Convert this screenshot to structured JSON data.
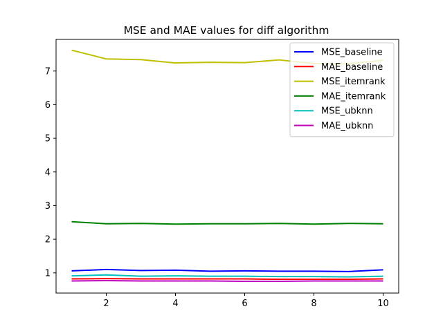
{
  "chart_data": {
    "type": "line",
    "title": "MSE and MAE values for diff algorithm",
    "xlabel": "",
    "ylabel": "",
    "x": [
      1,
      2,
      3,
      4,
      5,
      6,
      7,
      8,
      9,
      10
    ],
    "xlim": [
      0.55,
      10.45
    ],
    "ylim": [
      0.4,
      7.94
    ],
    "xticks": [
      2,
      4,
      6,
      8,
      10
    ],
    "yticks": [
      1,
      2,
      3,
      4,
      5,
      6,
      7
    ],
    "grid": false,
    "legend_position": "top-right",
    "series": [
      {
        "name": "MSE_baseline",
        "color": "#0000ff",
        "values": [
          1.06,
          1.1,
          1.07,
          1.08,
          1.05,
          1.06,
          1.05,
          1.05,
          1.04,
          1.09
        ]
      },
      {
        "name": "MAE_baseline",
        "color": "#ff0000",
        "values": [
          0.82,
          0.83,
          0.82,
          0.82,
          0.82,
          0.82,
          0.81,
          0.81,
          0.81,
          0.82
        ]
      },
      {
        "name": "MSE_itemrank",
        "color": "#bfbf00",
        "values": [
          7.62,
          7.36,
          7.34,
          7.24,
          7.26,
          7.25,
          7.33,
          7.22,
          7.21,
          7.32
        ]
      },
      {
        "name": "MAE_itemrank",
        "color": "#008000",
        "values": [
          2.52,
          2.46,
          2.47,
          2.45,
          2.46,
          2.46,
          2.47,
          2.45,
          2.47,
          2.46
        ]
      },
      {
        "name": "MSE_ubknn",
        "color": "#00bfbf",
        "values": [
          0.91,
          0.94,
          0.9,
          0.91,
          0.9,
          0.9,
          0.89,
          0.89,
          0.88,
          0.9
        ]
      },
      {
        "name": "MAE_ubknn",
        "color": "#bf00bf",
        "values": [
          0.76,
          0.77,
          0.76,
          0.76,
          0.76,
          0.75,
          0.75,
          0.76,
          0.76,
          0.76
        ]
      }
    ]
  }
}
